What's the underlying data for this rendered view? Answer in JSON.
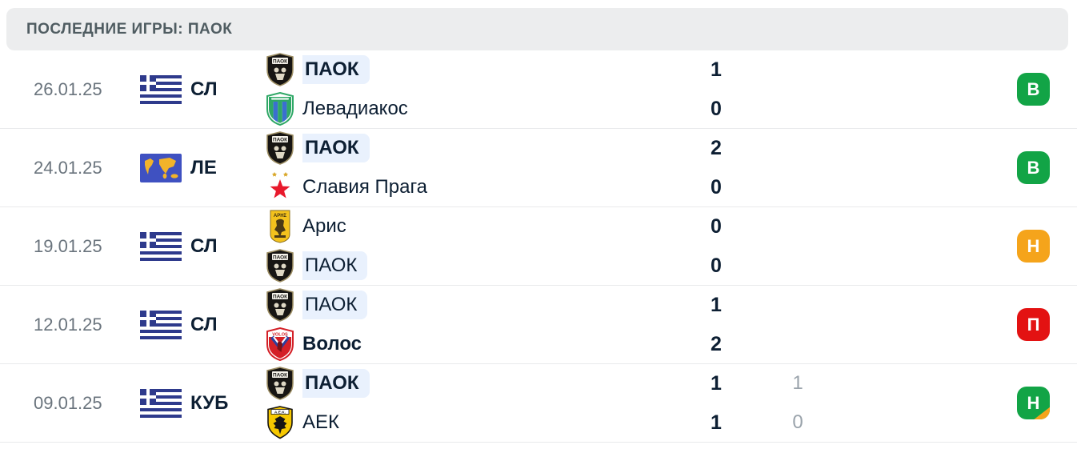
{
  "header": {
    "title": "ПОСЛЕДНИЕ ИГРЫ: ПАОК"
  },
  "colors": {
    "header-bg": "#ECEDEE",
    "header-text": "#4F5C61",
    "text": "#0D1F33",
    "muted": "#6A747D",
    "pens": "#9AA3AB",
    "pill-bg": "#E9F1FD",
    "divider": "#E9EAEC",
    "win": "#12A446",
    "draw": "#F5A41B",
    "loss": "#E31212"
  },
  "matches": [
    {
      "date": "26.01.25",
      "competition": {
        "code": "СЛ",
        "icon": "greece-flag"
      },
      "teams": [
        {
          "name": "ПАОК",
          "logo": "paok",
          "highlighted": true,
          "bold": true,
          "score": "1",
          "penalty": ""
        },
        {
          "name": "Левадиакос",
          "logo": "levadiakos",
          "highlighted": false,
          "bold": false,
          "score": "0",
          "penalty": ""
        }
      ],
      "result": {
        "label": "В",
        "type": "win"
      }
    },
    {
      "date": "24.01.25",
      "competition": {
        "code": "ЛЕ",
        "icon": "world-map"
      },
      "teams": [
        {
          "name": "ПАОК",
          "logo": "paok",
          "highlighted": true,
          "bold": true,
          "score": "2",
          "penalty": ""
        },
        {
          "name": "Славия Прага",
          "logo": "slavia",
          "highlighted": false,
          "bold": false,
          "score": "0",
          "penalty": ""
        }
      ],
      "result": {
        "label": "В",
        "type": "win"
      }
    },
    {
      "date": "19.01.25",
      "competition": {
        "code": "СЛ",
        "icon": "greece-flag"
      },
      "teams": [
        {
          "name": "Арис",
          "logo": "aris",
          "highlighted": false,
          "bold": false,
          "score": "0",
          "penalty": ""
        },
        {
          "name": "ПАОК",
          "logo": "paok",
          "highlighted": true,
          "bold": false,
          "score": "0",
          "penalty": ""
        }
      ],
      "result": {
        "label": "Н",
        "type": "draw"
      }
    },
    {
      "date": "12.01.25",
      "competition": {
        "code": "СЛ",
        "icon": "greece-flag"
      },
      "teams": [
        {
          "name": "ПАОК",
          "logo": "paok",
          "highlighted": true,
          "bold": false,
          "score": "1",
          "penalty": ""
        },
        {
          "name": "Волос",
          "logo": "volos",
          "highlighted": false,
          "bold": true,
          "score": "2",
          "penalty": ""
        }
      ],
      "result": {
        "label": "П",
        "type": "loss"
      }
    },
    {
      "date": "09.01.25",
      "competition": {
        "code": "КУБ",
        "icon": "greece-flag"
      },
      "teams": [
        {
          "name": "ПАОК",
          "logo": "paok",
          "highlighted": true,
          "bold": true,
          "score": "1",
          "penalty": "1"
        },
        {
          "name": "АЕК",
          "logo": "aek",
          "highlighted": false,
          "bold": false,
          "score": "1",
          "penalty": "0"
        }
      ],
      "result": {
        "label": "Н",
        "type": "draw-win"
      }
    }
  ]
}
